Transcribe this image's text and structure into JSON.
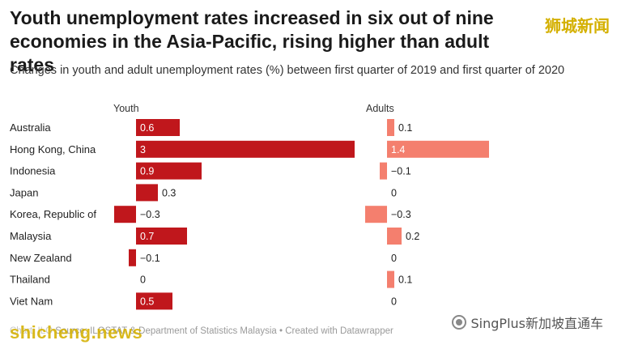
{
  "header": {
    "title": "Youth unemployment rates increased in six out of nine economies in the Asia-Pacific, rising higher than adult rates",
    "subtitle": "Changes in youth and adult unemployment rates (%) between first quarter of 2019 and first quarter of 2020"
  },
  "watermarks": {
    "top_right": "狮城新闻",
    "bottom_left": "shicheng.news",
    "bottom_right": "SingPlus新加坡直通车"
  },
  "footer": {
    "prefix": "Chart: ILO",
    "source": "Source: ILOSTAT & Department of Statistics Malaysia • Created with Datawrapper"
  },
  "colors": {
    "youth": "#c0171c",
    "adults": "#f47f6e",
    "text": "#222222"
  },
  "chart_data": {
    "type": "bar",
    "orientation": "horizontal",
    "categories": [
      "Australia",
      "Hong Kong, China",
      "Indonesia",
      "Japan",
      "Korea, Republic of",
      "Malaysia",
      "New Zealand",
      "Thailand",
      "Viet Nam"
    ],
    "series": [
      {
        "name": "Youth",
        "values": [
          0.6,
          3,
          0.9,
          0.3,
          -0.3,
          0.7,
          -0.1,
          0,
          0.5
        ],
        "labels": [
          "0.6",
          "3",
          "0.9",
          "0.3",
          "−0.3",
          "0.7",
          "−0.1",
          "0",
          "0.5"
        ]
      },
      {
        "name": "Adults",
        "values": [
          0.1,
          1.4,
          -0.1,
          0,
          -0.3,
          0.2,
          0,
          0.1,
          0
        ],
        "labels": [
          "0.1",
          "1.4",
          "−0.1",
          "0",
          "−0.3",
          "0.2",
          "0",
          "0.1",
          "0"
        ]
      }
    ],
    "legend": "column headers",
    "grid": false
  }
}
